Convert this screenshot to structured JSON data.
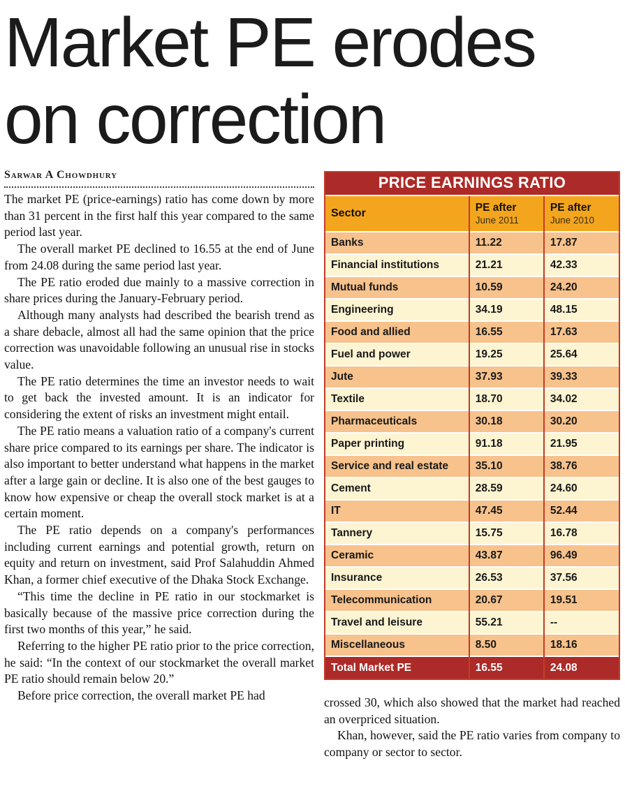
{
  "article": {
    "headline_line1": "Market PE erodes",
    "headline_line2": "on correction",
    "byline": "Sarwar A Chowdhury",
    "paragraphs": [
      "The market PE (price-earnings) ratio has come down by more than 31 percent in the first half this year compared to the same period last year.",
      "The overall market PE declined to 16.55 at the end of June from 24.08 during the same period last year.",
      "The PE ratio eroded due mainly to a massive correction in share prices during the January-February period.",
      "Although many analysts had described the bearish trend as a share debacle, almost all had the same opinion that the price correction was unavoidable following an unusual rise in stocks value.",
      "The PE ratio determines the time an investor needs to wait to get back the invested amount. It is an indicator for considering the extent of risks an investment might entail.",
      "The PE ratio means a valuation ratio of a company's current share price compared to its earnings per share. The indicator is also important to better understand what happens in the market after a large gain or decline. It is also one of the best gauges to know how expensive or cheap the overall stock market is at a certain moment.",
      "The PE ratio depends on a company's performances including current earnings and potential growth, return on equity and return on investment, said Prof Salahuddin Ahmed Khan, a former chief executive of the Dhaka Stock Exchange.",
      "“This time the decline in PE ratio in our stockmarket is basically because of the massive price correction during the first two months of this year,” he said.",
      "Referring to the higher PE ratio prior to the price correction, he said: “In the context of our stockmarket the overall market PE ratio should remain below 20.”",
      "Before price correction, the overall market PE had"
    ],
    "continuation_paragraphs": [
      "crossed 30, which also showed that the market had reached an overpriced situation.",
      "Khan, however, said the PE ratio varies from company to company or sector to sector."
    ]
  },
  "table": {
    "title": "PRICE EARNINGS RATIO",
    "columns": {
      "sector": "Sector",
      "col1_top": "PE after",
      "col1_sub": "June 2011",
      "col2_top": "PE after",
      "col2_sub": "June 2010"
    },
    "rows": [
      {
        "sector": "Banks",
        "pe2011": "11.22",
        "pe2010": "17.87"
      },
      {
        "sector": "Financial institutions",
        "pe2011": "21.21",
        "pe2010": "42.33"
      },
      {
        "sector": "Mutual funds",
        "pe2011": "10.59",
        "pe2010": "24.20"
      },
      {
        "sector": "Engineering",
        "pe2011": "34.19",
        "pe2010": "48.15"
      },
      {
        "sector": "Food and allied",
        "pe2011": "16.55",
        "pe2010": "17.63"
      },
      {
        "sector": "Fuel and power",
        "pe2011": "19.25",
        "pe2010": "25.64"
      },
      {
        "sector": "Jute",
        "pe2011": "37.93",
        "pe2010": "39.33"
      },
      {
        "sector": "Textile",
        "pe2011": "18.70",
        "pe2010": "34.02"
      },
      {
        "sector": "Pharmaceuticals",
        "pe2011": "30.18",
        "pe2010": "30.20"
      },
      {
        "sector": "Paper printing",
        "pe2011": "91.18",
        "pe2010": "21.95"
      },
      {
        "sector": "Service and real estate",
        "pe2011": "35.10",
        "pe2010": "38.76"
      },
      {
        "sector": "Cement",
        "pe2011": "28.59",
        "pe2010": "24.60"
      },
      {
        "sector": "IT",
        "pe2011": "47.45",
        "pe2010": "52.44"
      },
      {
        "sector": "Tannery",
        "pe2011": "15.75",
        "pe2010": "16.78"
      },
      {
        "sector": "Ceramic",
        "pe2011": "43.87",
        "pe2010": "96.49"
      },
      {
        "sector": "Insurance",
        "pe2011": "26.53",
        "pe2010": "37.56"
      },
      {
        "sector": "Telecommunication",
        "pe2011": "20.67",
        "pe2010": "19.51"
      },
      {
        "sector": "Travel and leisure",
        "pe2011": "55.21",
        "pe2010": "--"
      },
      {
        "sector": "Miscellaneous",
        "pe2011": "8.50",
        "pe2010": "18.16"
      }
    ],
    "total": {
      "label": "Total Market PE",
      "pe2011": "16.55",
      "pe2010": "24.08"
    },
    "colors": {
      "title_bg": "#AC2A27",
      "header_bg": "#F3A51E",
      "row_odd": "#F7C28C",
      "row_even": "#FDF4D2",
      "border": "#C43B28"
    }
  }
}
